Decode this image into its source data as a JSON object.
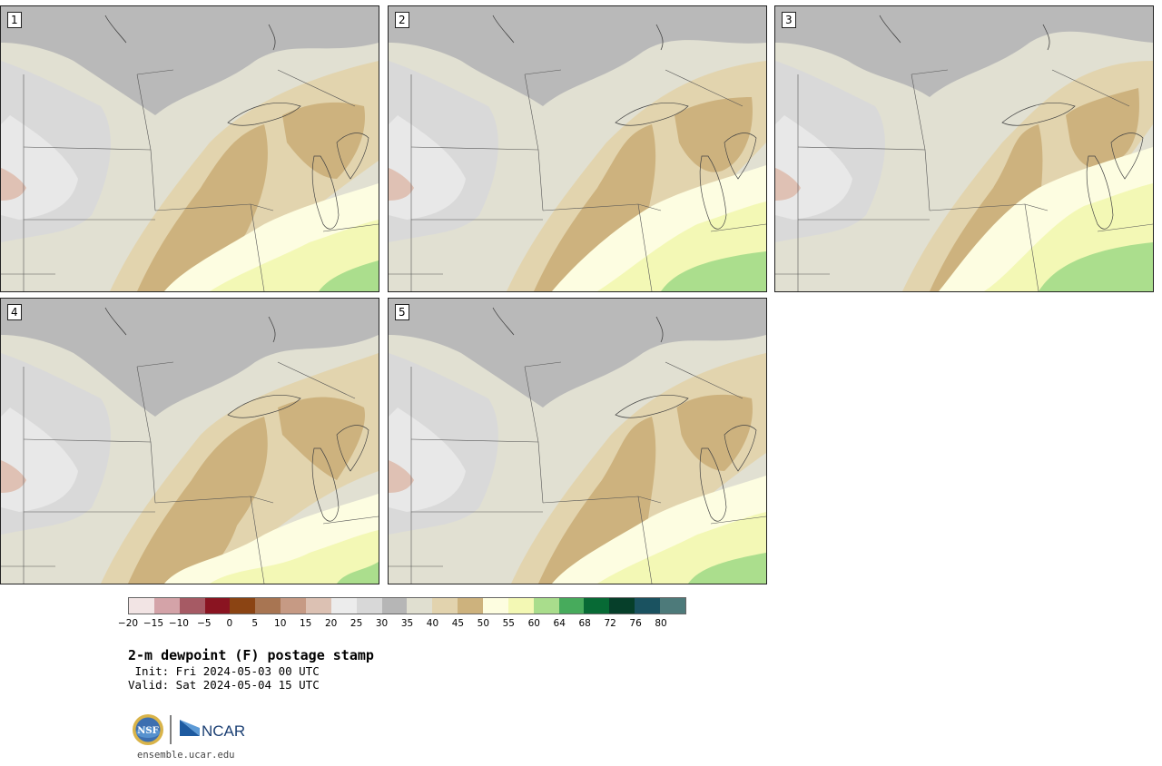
{
  "panels": [
    {
      "label": "1",
      "variant": 1
    },
    {
      "label": "2",
      "variant": 2
    },
    {
      "label": "3",
      "variant": 3
    },
    {
      "label": "4",
      "variant": 4
    },
    {
      "label": "5",
      "variant": 5
    }
  ],
  "colorbar": {
    "colors": [
      "#f2e4e4",
      "#d4a3a8",
      "#a65a64",
      "#8a1421",
      "#8b4413",
      "#a87552",
      "#c69a84",
      "#dcc1b3",
      "#ececec",
      "#d8d8d8",
      "#b6b6b6",
      "#e0dfd0",
      "#e2d3ae",
      "#cdb27d",
      "#fdfde0",
      "#f3f8b4",
      "#a9dd8c",
      "#47ab5c",
      "#076a35",
      "#063f2a",
      "#1a5260",
      "#4d7a7a"
    ],
    "tick_labels": [
      "−20",
      "−15",
      "−10",
      "−5",
      "0",
      "5",
      "10",
      "15",
      "20",
      "25",
      "30",
      "35",
      "40",
      "45",
      "50",
      "55",
      "60",
      "64",
      "68",
      "72",
      "76",
      "80"
    ]
  },
  "title": "2-m dewpoint (F) postage stamp",
  "init_line": " Init: Fri 2024-05-03 00 UTC",
  "valid_line": "Valid: Sat 2024-05-04 15 UTC",
  "logo": {
    "nsf_text": "NSF",
    "ncar_text": "NCAR"
  },
  "site_url": "ensemble.ucar.edu"
}
